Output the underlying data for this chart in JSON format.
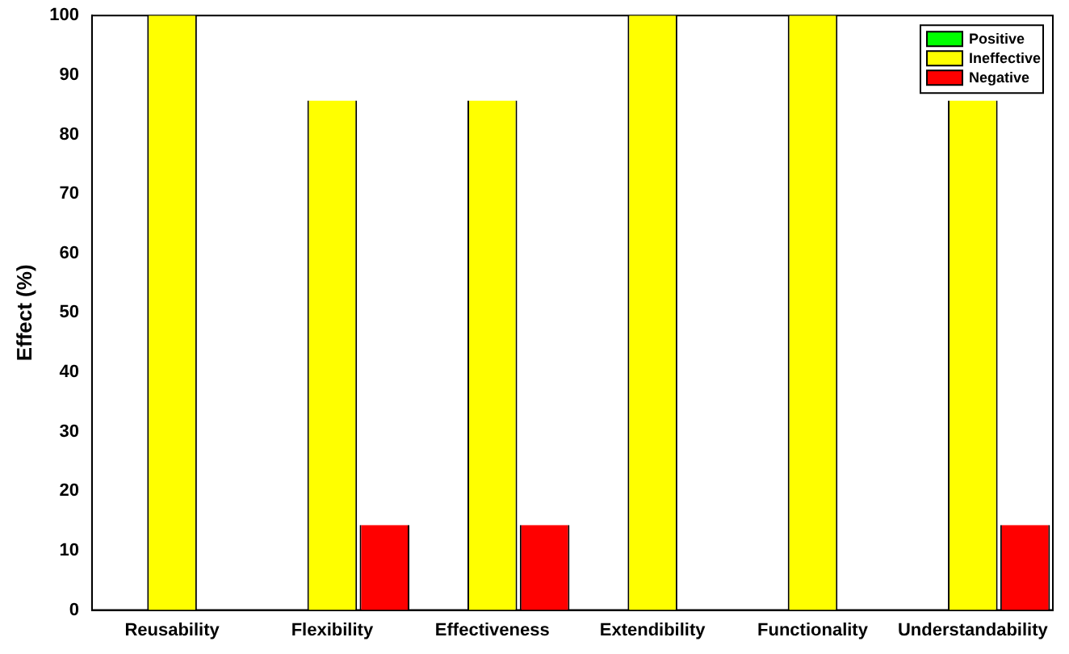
{
  "chart_data": {
    "type": "bar",
    "ylabel": "Effect (%)",
    "categories": [
      "Reusability",
      "Flexibility",
      "Effectiveness",
      "Extendibility",
      "Functionality",
      "Understandability"
    ],
    "series": [
      {
        "name": "Positive",
        "color": "#00ff00",
        "values": [
          0,
          0,
          0,
          0,
          0,
          0
        ]
      },
      {
        "name": "Ineffective",
        "color": "#ffff00",
        "values": [
          100,
          85.7,
          85.7,
          100,
          100,
          85.7
        ]
      },
      {
        "name": "Negative",
        "color": "#ff0000",
        "values": [
          0,
          14.3,
          14.3,
          0,
          0,
          14.3
        ]
      }
    ],
    "ylim": [
      0,
      100
    ],
    "yticks": [
      0,
      10,
      20,
      30,
      40,
      50,
      60,
      70,
      80,
      90,
      100
    ],
    "grid": false,
    "legend": "top right"
  }
}
